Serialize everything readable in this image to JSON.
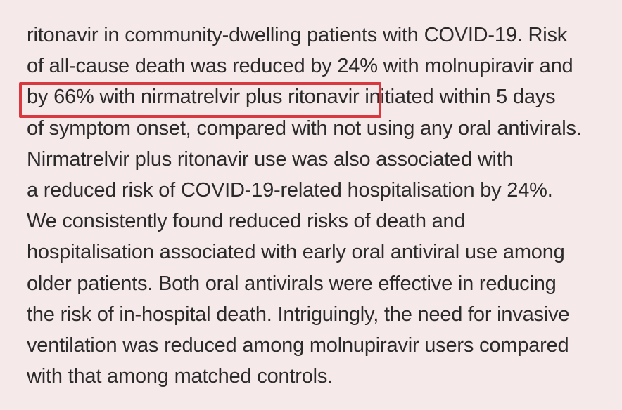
{
  "document": {
    "lines": [
      "ritonavir in community-dwelling patients with COVID-19. Risk",
      "of all-cause death was reduced by 24% with molnupiravir and",
      "by 66% with nirmatrelvir plus ritonavir initiated within 5 days",
      "of symptom onset, compared with not using any oral antivirals.",
      "Nirmatrelvir plus ritonavir use was also associated with",
      "a reduced risk of COVID-19-related hospitalisation by 24%.",
      "We consistently found reduced risks of death and",
      "hospitalisation associated with early oral antiviral use among",
      "older patients. Both oral antivirals were effective in reducing",
      "the risk of in-hospital death. Intriguingly, the need for invasive",
      "ventilation was reduced among molnupiravir users compared",
      "with that among matched controls."
    ]
  },
  "annotation": {
    "color": "#d9383f"
  }
}
